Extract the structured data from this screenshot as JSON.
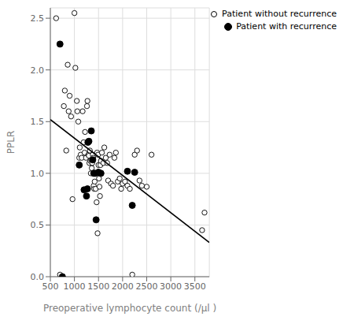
{
  "chart_data": {
    "type": "scatter",
    "xlabel": "Preoperative lymphocyte count (/μl )",
    "ylabel": "PPLR",
    "xlim": [
      500,
      3800
    ],
    "ylim": [
      0.0,
      2.6
    ],
    "xticks": [
      500,
      1000,
      1500,
      2000,
      2500,
      3000,
      3500
    ],
    "yticks": [
      {
        "value": 0.0,
        "label": "0.0"
      },
      0.5,
      {
        "value": 1.0,
        "label": "1.0"
      },
      1.5,
      {
        "value": 2.0,
        "label": "2.0"
      },
      2.5
    ],
    "grid": true,
    "legend": "upper right",
    "series": [
      {
        "name": "Patient without recurrence",
        "color": "#000000",
        "marker": "open_circle",
        "x": [
          620,
          700,
          780,
          800,
          830,
          860,
          880,
          900,
          930,
          960,
          1000,
          1020,
          1050,
          1060,
          1080,
          1100,
          1110,
          1130,
          1150,
          1170,
          1190,
          1210,
          1220,
          1240,
          1260,
          1270,
          1290,
          1300,
          1310,
          1320,
          1330,
          1340,
          1350,
          1360,
          1370,
          1380,
          1390,
          1400,
          1410,
          1420,
          1430,
          1440,
          1450,
          1460,
          1470,
          1480,
          1490,
          1500,
          1510,
          1520,
          1530,
          1540,
          1550,
          1570,
          1600,
          1620,
          1650,
          1680,
          1700,
          1730,
          1760,
          1800,
          1830,
          1860,
          1900,
          1940,
          1970,
          2000,
          2050,
          2100,
          2150,
          2200,
          2250,
          2300,
          2350,
          2400,
          2500,
          2600,
          3650,
          3700
        ],
        "values": [
          2.5,
          0.02,
          1.65,
          1.8,
          1.22,
          2.05,
          1.6,
          1.75,
          1.55,
          0.75,
          2.55,
          2.02,
          1.7,
          1.6,
          1.5,
          1.15,
          1.25,
          1.18,
          1.15,
          1.6,
          1.3,
          1.2,
          1.4,
          1.15,
          1.65,
          1.7,
          1.18,
          1.17,
          1.1,
          1.22,
          1.12,
          1.0,
          1.13,
          1.05,
          1.1,
          1.18,
          1.15,
          0.88,
          0.85,
          0.92,
          1.0,
          0.85,
          1.0,
          0.72,
          1.2,
          0.42,
          1.18,
          1.08,
          0.95,
          0.87,
          0.78,
          1.08,
          1.12,
          1.2,
          1.1,
          1.25,
          1.15,
          1.1,
          0.93,
          1.18,
          0.9,
          0.88,
          1.15,
          1.2,
          0.92,
          0.95,
          0.85,
          0.9,
          0.92,
          0.88,
          0.85,
          0.02,
          1.18,
          1.22,
          0.93,
          0.88,
          0.87,
          1.18,
          0.45,
          0.62
        ]
      },
      {
        "name": "Patient with recurrence",
        "color": "#000000",
        "marker": "circle",
        "x": [
          700,
          750,
          1100,
          1200,
          1250,
          1270,
          1280,
          1300,
          1350,
          1380,
          1400,
          1430,
          1450,
          1500,
          1550,
          2100,
          2200,
          2250
        ],
        "values": [
          2.25,
          0.0,
          1.08,
          0.84,
          0.78,
          0.85,
          1.3,
          1.31,
          1.41,
          1.13,
          1.0,
          1.0,
          0.55,
          1.01,
          1.0,
          1.02,
          0.69,
          1.01
        ]
      },
      {
        "type": "line",
        "color": "#000000",
        "x": [
          500,
          3800
        ],
        "values": [
          1.52,
          0.33
        ]
      }
    ]
  }
}
